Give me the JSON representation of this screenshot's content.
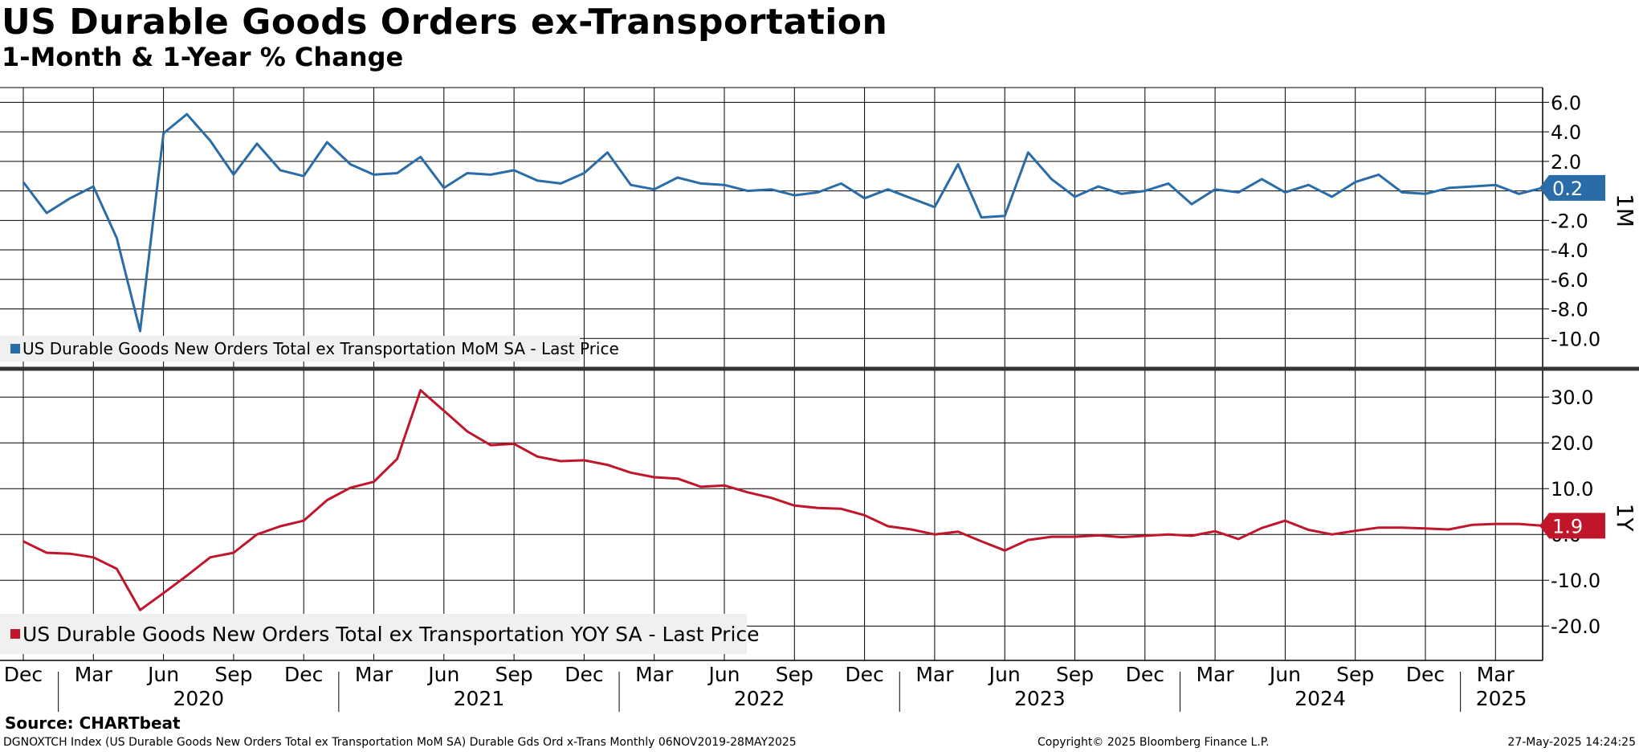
{
  "title": "US Durable Goods Orders ex-Transportation",
  "subtitle": "1-Month & 1-Year % Change",
  "source": "Source: CHARTbeat",
  "footer": {
    "description": "DGNOXTCH Index (US Durable Goods New Orders Total ex Transportation MoM SA) Durable Gds Ord x-Trans  Monthly 06NOV2019-28MAY2025",
    "copyright": "Copyright© 2025 Bloomberg Finance L.P.",
    "timestamp": "27-May-2025 14:24:25"
  },
  "chart_data": [
    {
      "type": "line",
      "panel_label": "1M",
      "legend": "US Durable Goods New Orders Total ex Transportation MoM SA - Last Price",
      "color": "#2a6ca7",
      "last_value_label": "0.2",
      "ylim": [
        -12,
        7
      ],
      "yticks": [
        6.0,
        4.0,
        2.0,
        -2.0,
        -4.0,
        -6.0,
        -8.0,
        -10.0
      ],
      "grid": true,
      "x": [
        "2019-11",
        "2019-12",
        "2020-01",
        "2020-02",
        "2020-03",
        "2020-04",
        "2020-05",
        "2020-06",
        "2020-07",
        "2020-08",
        "2020-09",
        "2020-10",
        "2020-11",
        "2020-12",
        "2021-01",
        "2021-02",
        "2021-03",
        "2021-04",
        "2021-05",
        "2021-06",
        "2021-07",
        "2021-08",
        "2021-09",
        "2021-10",
        "2021-11",
        "2021-12",
        "2022-01",
        "2022-02",
        "2022-03",
        "2022-04",
        "2022-05",
        "2022-06",
        "2022-07",
        "2022-08",
        "2022-09",
        "2022-10",
        "2022-11",
        "2022-12",
        "2023-01",
        "2023-02",
        "2023-03",
        "2023-04",
        "2023-05",
        "2023-06",
        "2023-07",
        "2023-08",
        "2023-09",
        "2023-10",
        "2023-11",
        "2023-12",
        "2024-01",
        "2024-02",
        "2024-03",
        "2024-04",
        "2024-05",
        "2024-06",
        "2024-07",
        "2024-08",
        "2024-09",
        "2024-10",
        "2024-11",
        "2024-12",
        "2025-01",
        "2025-02",
        "2025-03",
        "2025-04"
      ],
      "values": [
        0.6,
        -1.5,
        -0.5,
        0.3,
        -3.2,
        -9.5,
        3.9,
        5.2,
        3.4,
        1.1,
        3.2,
        1.4,
        1.0,
        3.3,
        1.8,
        1.1,
        1.2,
        2.3,
        0.2,
        1.2,
        1.1,
        1.4,
        0.7,
        0.5,
        1.2,
        2.6,
        0.4,
        0.1,
        0.9,
        0.5,
        0.4,
        0.0,
        0.1,
        -0.3,
        -0.1,
        0.5,
        -0.5,
        0.1,
        -0.5,
        -1.1,
        1.8,
        -1.8,
        -1.7,
        2.6,
        0.8,
        -0.4,
        0.3,
        -0.2,
        0.0,
        0.5,
        -0.9,
        0.1,
        -0.1,
        0.8,
        -0.1,
        0.4,
        -0.4,
        0.6,
        1.1,
        -0.1,
        -0.2,
        0.2,
        0.3,
        0.4,
        -0.2,
        0.2
      ]
    },
    {
      "type": "line",
      "panel_label": "1Y",
      "legend": "US Durable Goods New Orders Total ex Transportation YOY SA - Last Price",
      "color": "#c0162c",
      "last_value_label": "1.9",
      "ylim": [
        -27.5,
        36
      ],
      "yticks": [
        30.0,
        20.0,
        10.0,
        0.0,
        -10.0,
        -20.0
      ],
      "grid": true,
      "x": [
        "2019-11",
        "2019-12",
        "2020-01",
        "2020-02",
        "2020-03",
        "2020-04",
        "2020-05",
        "2020-06",
        "2020-07",
        "2020-08",
        "2020-09",
        "2020-10",
        "2020-11",
        "2020-12",
        "2021-01",
        "2021-02",
        "2021-03",
        "2021-04",
        "2021-05",
        "2021-06",
        "2021-07",
        "2021-08",
        "2021-09",
        "2021-10",
        "2021-11",
        "2021-12",
        "2022-01",
        "2022-02",
        "2022-03",
        "2022-04",
        "2022-05",
        "2022-06",
        "2022-07",
        "2022-08",
        "2022-09",
        "2022-10",
        "2022-11",
        "2022-12",
        "2023-01",
        "2023-02",
        "2023-03",
        "2023-04",
        "2023-05",
        "2023-06",
        "2023-07",
        "2023-08",
        "2023-09",
        "2023-10",
        "2023-11",
        "2023-12",
        "2024-01",
        "2024-02",
        "2024-03",
        "2024-04",
        "2024-05",
        "2024-06",
        "2024-07",
        "2024-08",
        "2024-09",
        "2024-10",
        "2024-11",
        "2024-12",
        "2025-01",
        "2025-02",
        "2025-03",
        "2025-04"
      ],
      "values": [
        -1.5,
        -4.0,
        -4.2,
        -5.0,
        -7.5,
        -16.5,
        -12.8,
        -9.0,
        -5.0,
        -4.0,
        0.0,
        1.8,
        3.0,
        7.5,
        10.2,
        11.5,
        16.5,
        31.5,
        27.0,
        22.5,
        19.5,
        19.8,
        17.0,
        16.0,
        16.2,
        15.2,
        13.5,
        12.5,
        12.2,
        10.4,
        10.7,
        9.2,
        8.0,
        6.3,
        5.8,
        5.6,
        4.2,
        1.8,
        1.1,
        0.0,
        0.6,
        -1.5,
        -3.5,
        -1.2,
        -0.5,
        -0.5,
        -0.2,
        -0.6,
        -0.3,
        0.0,
        -0.3,
        0.7,
        -1.0,
        1.4,
        3.0,
        1.0,
        0.0,
        0.8,
        1.5,
        1.5,
        1.3,
        1.1,
        2.1,
        2.3,
        2.3,
        1.9
      ]
    }
  ],
  "x_axis": {
    "months": [
      "Dec",
      "Mar",
      "Jun",
      "Sep",
      "Dec",
      "Mar",
      "Jun",
      "Sep",
      "Dec",
      "Mar",
      "Jun",
      "Sep",
      "Dec",
      "Mar",
      "Jun",
      "Sep",
      "Dec",
      "Mar",
      "Jun",
      "Sep",
      "Dec",
      "Mar"
    ],
    "years": [
      "2020",
      "2021",
      "2022",
      "2023",
      "2024",
      "2025"
    ]
  }
}
